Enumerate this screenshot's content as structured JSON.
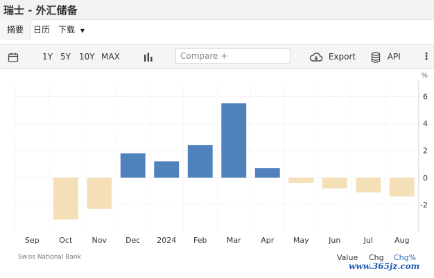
{
  "header": {
    "title": "瑞士 - 外汇储备"
  },
  "tabs": [
    {
      "label": "摘要"
    },
    {
      "label": "日历"
    },
    {
      "label": "下载"
    }
  ],
  "toolbar": {
    "ranges": [
      "1Y",
      "5Y",
      "10Y",
      "MAX"
    ],
    "compare_placeholder": "Compare +",
    "export_label": "Export",
    "api_label": "API"
  },
  "chart_data": {
    "type": "bar",
    "unit_label": "%",
    "categories": [
      "Sep",
      "Oct",
      "Nov",
      "Dec",
      "2024",
      "Feb",
      "Mar",
      "Apr",
      "May",
      "Jun",
      "Jul",
      "Aug"
    ],
    "series": [
      {
        "values": [
          null,
          -3.1,
          -2.3,
          1.8,
          1.2,
          2.4,
          5.5,
          0.7,
          -0.4,
          -0.8,
          -1.1,
          -1.4
        ]
      }
    ],
    "positive_color": "#4f81bd",
    "negative_color": "#f5dfb6",
    "yticks": [
      6,
      4,
      2,
      0,
      -2
    ],
    "ylim": [
      -4,
      7
    ],
    "axis_position": "right",
    "grid": true
  },
  "footer": {
    "source": "Swiss National Bank",
    "modes": [
      "Value",
      "Chg",
      "Chg%"
    ],
    "active_mode": "Chg%",
    "watermark": "www.365jz.com"
  }
}
